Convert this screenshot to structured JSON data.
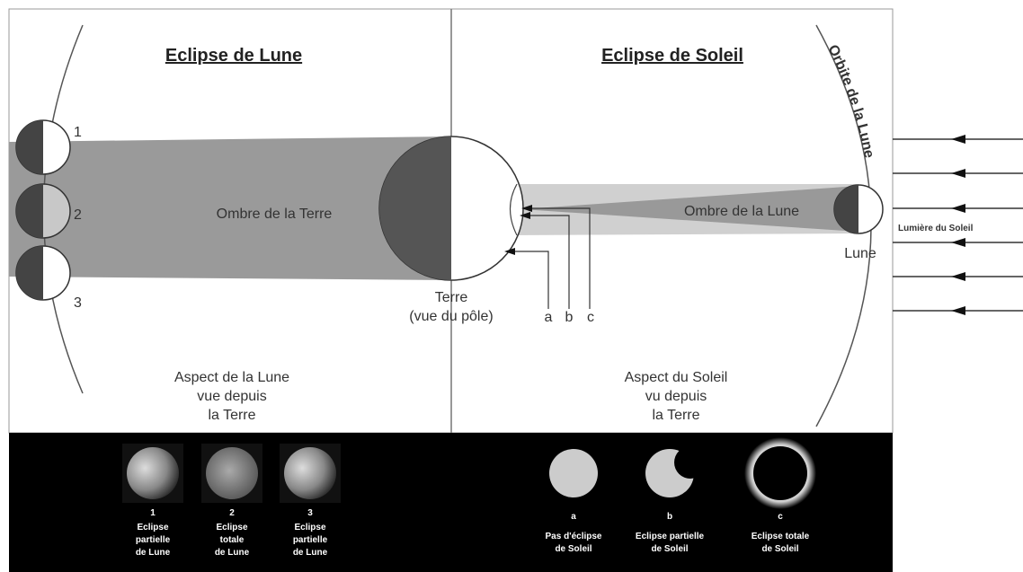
{
  "left_panel": {
    "title": "Eclipse de Lune",
    "moon_positions": [
      "1",
      "2",
      "3"
    ],
    "shadow_label": "Ombre de la Terre",
    "aspect_lines": [
      "Aspect de la Lune",
      "vue depuis",
      "la Terre"
    ]
  },
  "earth": {
    "label_lines": [
      "Terre",
      "(vue du pôle)"
    ]
  },
  "right_panel": {
    "title": "Eclipse de Soleil",
    "orbit_label": "Orbite de la Lune",
    "shadow_label": "Ombre de la Lune",
    "moon_label": "Lune",
    "sunlight_label": "Lumière du Soleil",
    "points": [
      "a",
      "b",
      "c"
    ],
    "aspect_lines": [
      "Aspect du Soleil",
      "vu depuis",
      "la Terre"
    ]
  },
  "lunar_phases": [
    {
      "number": "1",
      "caption_lines": [
        "Eclipse",
        "partielle",
        "de Lune"
      ]
    },
    {
      "number": "2",
      "caption_lines": [
        "Eclipse",
        "totale",
        "de Lune"
      ]
    },
    {
      "number": "3",
      "caption_lines": [
        "Eclipse",
        "partielle",
        "de Lune"
      ]
    }
  ],
  "solar_phases": [
    {
      "letter": "a",
      "caption_lines": [
        "Pas d'éclipse",
        "de Soleil"
      ]
    },
    {
      "letter": "b",
      "caption_lines": [
        "Eclipse partielle",
        "de Soleil"
      ]
    },
    {
      "letter": "c",
      "caption_lines": [
        "Eclipse totale",
        "de Soleil"
      ]
    }
  ]
}
